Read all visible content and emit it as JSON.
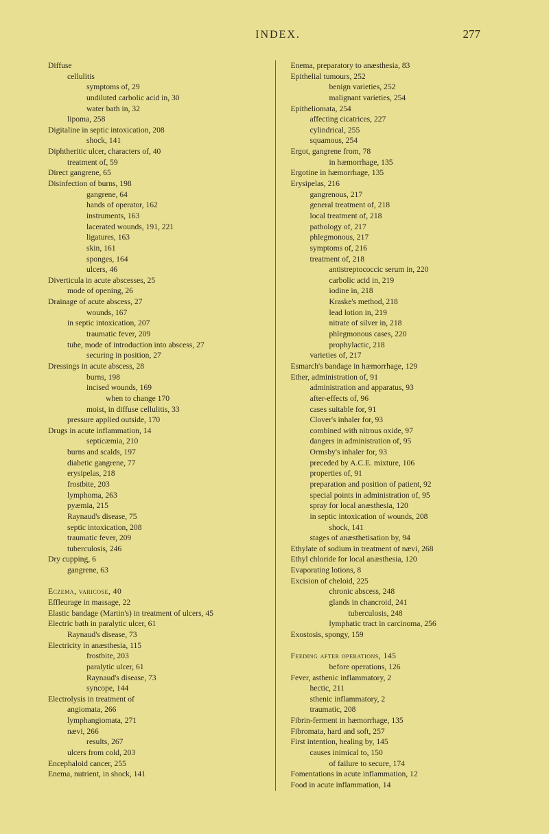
{
  "header": {
    "title": "INDEX.",
    "page_number": "277"
  },
  "left_column": [
    {
      "lvl": 0,
      "t": "Diffuse"
    },
    {
      "lvl": 1,
      "t": "cellulitis"
    },
    {
      "lvl": 2,
      "t": "symptoms of, 29"
    },
    {
      "lvl": 2,
      "t": "undiluted carbolic acid in, 30"
    },
    {
      "lvl": 2,
      "t": "water bath in, 32"
    },
    {
      "lvl": 1,
      "t": "lipoma, 258"
    },
    {
      "lvl": 0,
      "t": "Digitaline in septic intoxication, 208"
    },
    {
      "lvl": 2,
      "t": "shock, 141"
    },
    {
      "lvl": 0,
      "t": "Diphtheritic ulcer, characters of, 40"
    },
    {
      "lvl": 1,
      "t": "treatment of, 59"
    },
    {
      "lvl": 0,
      "t": "Direct gangrene, 65"
    },
    {
      "lvl": 0,
      "t": "Disinfection of burns, 198"
    },
    {
      "lvl": 2,
      "t": "gangrene, 64"
    },
    {
      "lvl": 2,
      "t": "hands of operator, 162"
    },
    {
      "lvl": 2,
      "t": "instruments, 163"
    },
    {
      "lvl": 2,
      "t": "lacerated wounds, 191, 221"
    },
    {
      "lvl": 2,
      "t": "ligatures, 163"
    },
    {
      "lvl": 2,
      "t": "skin, 161"
    },
    {
      "lvl": 2,
      "t": "sponges, 164"
    },
    {
      "lvl": 2,
      "t": "ulcers, 46"
    },
    {
      "lvl": 0,
      "t": "Diverticula in acute abscesses, 25"
    },
    {
      "lvl": 1,
      "t": "mode of opening, 26"
    },
    {
      "lvl": 0,
      "t": "Drainage of acute abscess, 27"
    },
    {
      "lvl": 2,
      "t": "wounds, 167"
    },
    {
      "lvl": 1,
      "t": "in septic intoxication, 207"
    },
    {
      "lvl": 2,
      "t": "traumatic fever, 209"
    },
    {
      "lvl": 1,
      "t": "tube, mode of introduction into abscess, 27"
    },
    {
      "lvl": 2,
      "t": "securing in position, 27"
    },
    {
      "lvl": 0,
      "t": "Dressings in acute abscess, 28"
    },
    {
      "lvl": 2,
      "t": "burns, 198"
    },
    {
      "lvl": 2,
      "t": "incised wounds, 169"
    },
    {
      "lvl": 3,
      "t": "when to change 170"
    },
    {
      "lvl": 2,
      "t": "moist, in diffuse cellulitis, 33"
    },
    {
      "lvl": 1,
      "t": "pressure applied outside, 170"
    },
    {
      "lvl": 0,
      "t": "Drugs in acute inflammation, 14"
    },
    {
      "lvl": 2,
      "t": "septicæmia, 210"
    },
    {
      "lvl": 1,
      "t": "burns and scalds, 197"
    },
    {
      "lvl": 1,
      "t": "diabetic gangrene, 77"
    },
    {
      "lvl": 1,
      "t": "erysipelas, 218"
    },
    {
      "lvl": 1,
      "t": "frostbite, 203"
    },
    {
      "lvl": 1,
      "t": "lymphoma, 263"
    },
    {
      "lvl": 1,
      "t": "pyæmia, 215"
    },
    {
      "lvl": 1,
      "t": "Raynaud's disease, 75"
    },
    {
      "lvl": 1,
      "t": "septic intoxication, 208"
    },
    {
      "lvl": 1,
      "t": "traumatic fever, 209"
    },
    {
      "lvl": 1,
      "t": "tuberculosis, 246"
    },
    {
      "lvl": 0,
      "t": "Dry cupping, 6"
    },
    {
      "lvl": 1,
      "t": "gangrene, 63"
    },
    {
      "lvl": 0,
      "t": " "
    },
    {
      "lvl": 0,
      "sc": true,
      "t": "Eczema, varicose, 40"
    },
    {
      "lvl": 0,
      "t": "Effleurage in massage, 22"
    },
    {
      "lvl": 0,
      "t": "Elastic bandage (Martin's) in treatment of ulcers, 45"
    },
    {
      "lvl": 0,
      "t": "Electric bath in paralytic ulcer, 61"
    },
    {
      "lvl": 1,
      "t": "Raynaud's disease, 73"
    },
    {
      "lvl": 0,
      "t": "Electricity in anæsthesia, 115"
    },
    {
      "lvl": 2,
      "t": "frostbite, 203"
    },
    {
      "lvl": 2,
      "t": "paralytic ulcer, 61"
    },
    {
      "lvl": 2,
      "t": "Raynaud's disease, 73"
    },
    {
      "lvl": 2,
      "t": "syncope, 144"
    },
    {
      "lvl": 0,
      "t": "Electrolysis in treatment of"
    },
    {
      "lvl": 1,
      "t": "angiomata, 266"
    },
    {
      "lvl": 1,
      "t": "lymphangiomata, 271"
    },
    {
      "lvl": 1,
      "t": "nævi, 266"
    },
    {
      "lvl": 2,
      "t": "results, 267"
    },
    {
      "lvl": 1,
      "t": "ulcers from cold, 203"
    },
    {
      "lvl": 0,
      "t": "Encephaloid cancer, 255"
    },
    {
      "lvl": 0,
      "t": "Enema, nutrient, in shock, 141"
    }
  ],
  "right_column": [
    {
      "lvl": 0,
      "t": "Enema, preparatory to anæsthesia, 83"
    },
    {
      "lvl": 0,
      "t": "Epithelial tumours, 252"
    },
    {
      "lvl": 2,
      "t": "benign varieties, 252"
    },
    {
      "lvl": 2,
      "t": "malignant varieties, 254"
    },
    {
      "lvl": 0,
      "t": "Epitheliomata, 254"
    },
    {
      "lvl": 1,
      "t": "affecting cicatrices, 227"
    },
    {
      "lvl": 1,
      "t": "cylindrical, 255"
    },
    {
      "lvl": 1,
      "t": "squamous, 254"
    },
    {
      "lvl": 0,
      "t": "Ergot, gangrene from, 78"
    },
    {
      "lvl": 2,
      "t": "in hæmorrhage, 135"
    },
    {
      "lvl": 0,
      "t": "Ergotine in hæmorrhage, 135"
    },
    {
      "lvl": 0,
      "t": "Erysipelas, 216"
    },
    {
      "lvl": 1,
      "t": "gangrenous, 217"
    },
    {
      "lvl": 1,
      "t": "general treatment of, 218"
    },
    {
      "lvl": 1,
      "t": "local treatment of, 218"
    },
    {
      "lvl": 1,
      "t": "pathology of, 217"
    },
    {
      "lvl": 1,
      "t": "phlegmonous, 217"
    },
    {
      "lvl": 1,
      "t": "symptoms of, 216"
    },
    {
      "lvl": 1,
      "t": "treatment of, 218"
    },
    {
      "lvl": 2,
      "t": "antistreptococcic serum in, 220"
    },
    {
      "lvl": 2,
      "t": "carbolic acid in, 219"
    },
    {
      "lvl": 2,
      "t": "iodine in, 218"
    },
    {
      "lvl": 2,
      "t": "Kraske's method, 218"
    },
    {
      "lvl": 2,
      "t": "lead lotion in, 219"
    },
    {
      "lvl": 2,
      "t": "nitrate of silver in, 218"
    },
    {
      "lvl": 2,
      "t": "phlegmonous cases, 220"
    },
    {
      "lvl": 2,
      "t": "prophylactic, 218"
    },
    {
      "lvl": 1,
      "t": "varieties of, 217"
    },
    {
      "lvl": 0,
      "t": "Esmarch's bandage in hæmorrhage, 129"
    },
    {
      "lvl": 0,
      "t": "Ether, administration of, 91"
    },
    {
      "lvl": 1,
      "t": "administration and apparatus, 93"
    },
    {
      "lvl": 1,
      "t": "after-effects of, 96"
    },
    {
      "lvl": 1,
      "t": "cases suitable for, 91"
    },
    {
      "lvl": 1,
      "t": "Clover's inhaler for, 93"
    },
    {
      "lvl": 1,
      "t": "combined with nitrous oxide, 97"
    },
    {
      "lvl": 1,
      "t": "dangers in administration of, 95"
    },
    {
      "lvl": 1,
      "t": "Ormsby's inhaler for, 93"
    },
    {
      "lvl": 1,
      "t": "preceded by A.C.E. mixture, 106"
    },
    {
      "lvl": 1,
      "t": "properties of, 91"
    },
    {
      "lvl": 1,
      "t": "preparation and position of patient, 92"
    },
    {
      "lvl": 1,
      "t": "special points in administration of, 95"
    },
    {
      "lvl": 1,
      "t": "spray for local anæsthesia, 120"
    },
    {
      "lvl": 1,
      "t": "in septic intoxication of wounds, 208"
    },
    {
      "lvl": 2,
      "t": "shock, 141"
    },
    {
      "lvl": 1,
      "t": "stages of anæsthetisation by, 94"
    },
    {
      "lvl": 0,
      "t": "Ethylate of sodium in treatment of nævi, 268"
    },
    {
      "lvl": 0,
      "t": "Ethyl chloride for local anæsthesia, 120"
    },
    {
      "lvl": 0,
      "t": "Evaporating lotions, 8"
    },
    {
      "lvl": 0,
      "t": "Excision of cheloid, 225"
    },
    {
      "lvl": 2,
      "t": "chronic abscess, 248"
    },
    {
      "lvl": 2,
      "t": "glands in chancroid, 241"
    },
    {
      "lvl": 3,
      "t": "tuberculosis, 248"
    },
    {
      "lvl": 2,
      "t": "lymphatic tract in carcinoma, 256"
    },
    {
      "lvl": 0,
      "t": "Exostosis, spongy, 159"
    },
    {
      "lvl": 0,
      "t": " "
    },
    {
      "lvl": 0,
      "sc": true,
      "t": "Feeding after operations, 145"
    },
    {
      "lvl": 2,
      "t": "before operations, 126"
    },
    {
      "lvl": 0,
      "t": "Fever, asthenic inflammatory, 2"
    },
    {
      "lvl": 1,
      "t": "hectic, 211"
    },
    {
      "lvl": 1,
      "t": "sthenic inflammatory, 2"
    },
    {
      "lvl": 1,
      "t": "traumatic, 208"
    },
    {
      "lvl": 0,
      "t": "Fibrin-ferment in hæmorrhage, 135"
    },
    {
      "lvl": 0,
      "t": "Fibromata, hard and soft, 257"
    },
    {
      "lvl": 0,
      "t": "First intention, healing by, 145"
    },
    {
      "lvl": 1,
      "t": "causes inimical to, 150"
    },
    {
      "lvl": 2,
      "t": "of failure to secure, 174"
    },
    {
      "lvl": 0,
      "t": "Fomentations in acute inflammation, 12"
    },
    {
      "lvl": 0,
      "t": "Food in acute inflammation, 14"
    }
  ]
}
